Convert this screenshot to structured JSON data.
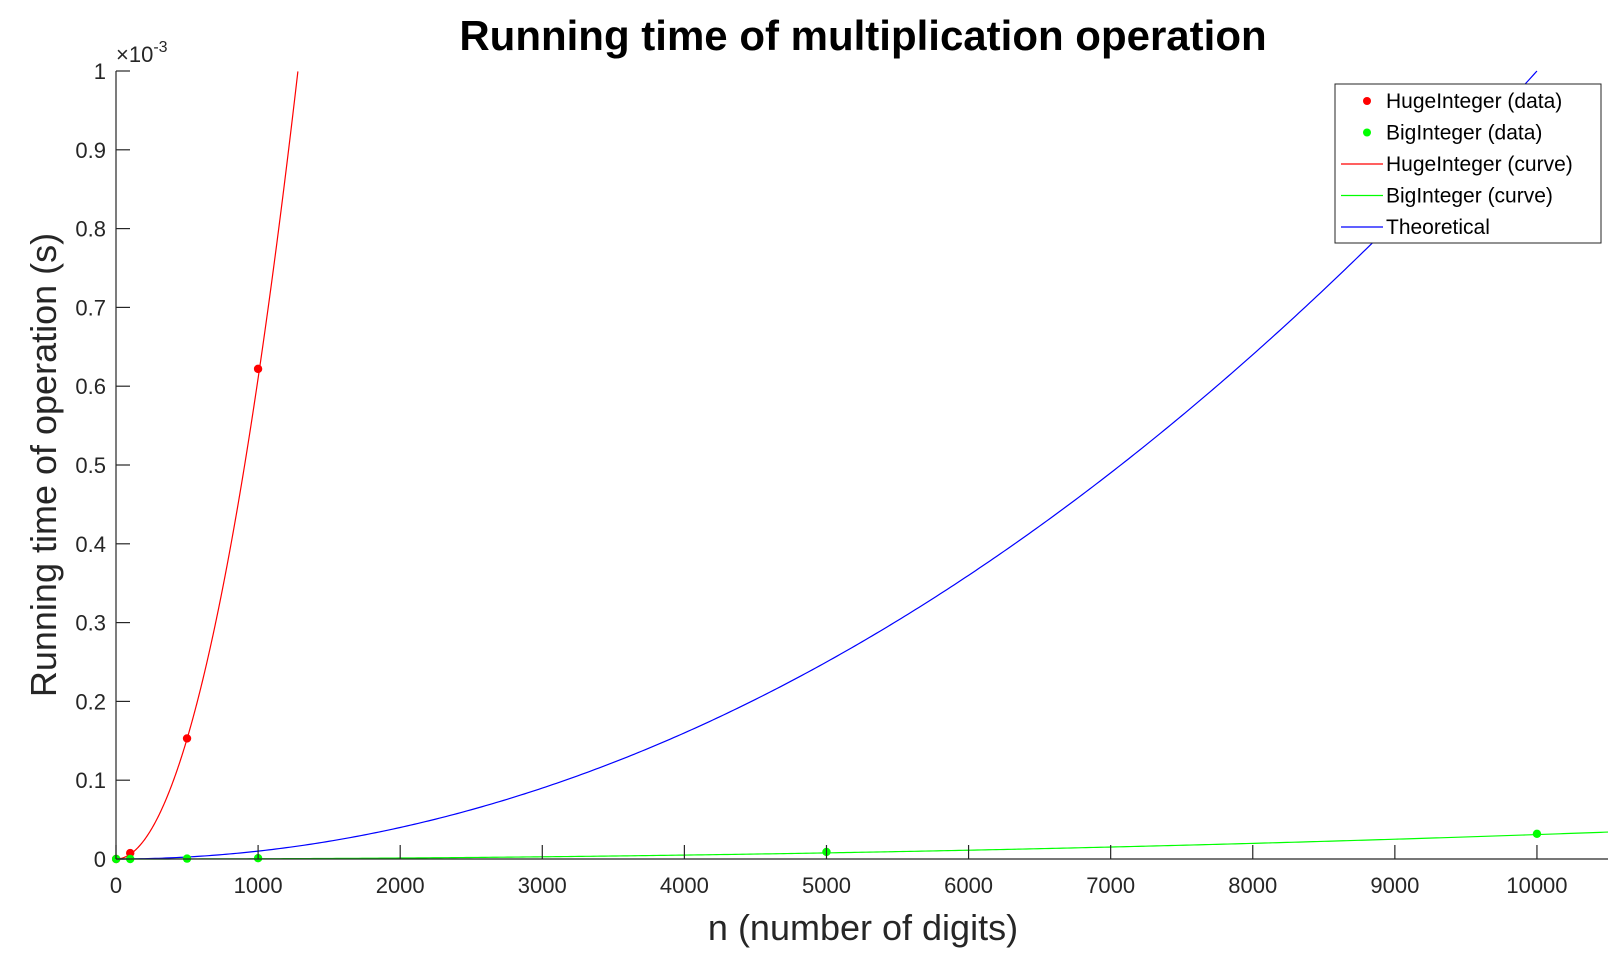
{
  "chart_data": {
    "type": "line",
    "title": "Running time of multiplication operation",
    "xlabel": "n (number of digits)",
    "ylabel": "Running time of operation (s)",
    "xlim": [
      0,
      10500
    ],
    "ylim": [
      0,
      0.001
    ],
    "x_ticks": [
      0,
      1000,
      2000,
      3000,
      4000,
      5000,
      6000,
      7000,
      8000,
      9000,
      10000
    ],
    "x_tick_labels": [
      "0",
      "1000",
      "2000",
      "3000",
      "4000",
      "5000",
      "6000",
      "7000",
      "8000",
      "9000",
      "10000"
    ],
    "y_ticks": [
      0,
      0.0001,
      0.0002,
      0.0003,
      0.0004,
      0.0005,
      0.0006,
      0.0007,
      0.0008,
      0.0009,
      0.001
    ],
    "y_tick_labels": [
      "0",
      "0.1",
      "0.2",
      "0.3",
      "0.4",
      "0.5",
      "0.6",
      "0.7",
      "0.8",
      "0.9",
      "1"
    ],
    "y_multiplier": "×10",
    "y_multiplier_exponent": "-3",
    "grid": false,
    "legend_position": "top-right",
    "series": [
      {
        "name": "HugeInteger (data)",
        "kind": "scatter",
        "color": "#ff0000",
        "x": [
          1,
          100,
          500,
          1000
        ],
        "y": [
          0,
          7.5e-06,
          0.000153,
          0.000622
        ]
      },
      {
        "name": "BigInteger (data)",
        "kind": "scatter",
        "color": "#00ff00",
        "x": [
          1,
          100,
          500,
          1000,
          5000,
          10000
        ],
        "y": [
          0,
          0,
          5e-07,
          1e-06,
          9e-06,
          3.2e-05
        ]
      },
      {
        "name": "HugeInteger (curve)",
        "kind": "curve",
        "color": "#ff0000",
        "formula": "6.1e-10 * x^2",
        "x_range": [
          0,
          1280
        ]
      },
      {
        "name": "BigInteger (curve)",
        "kind": "curve",
        "color": "#00ff00",
        "formula": "3.1e-13 * x^2",
        "x_range": [
          0,
          10500
        ]
      },
      {
        "name": "Theoretical",
        "kind": "curve",
        "color": "#0000ff",
        "formula": "1e-11 * x^2",
        "x_range": [
          0,
          10000
        ]
      }
    ]
  }
}
